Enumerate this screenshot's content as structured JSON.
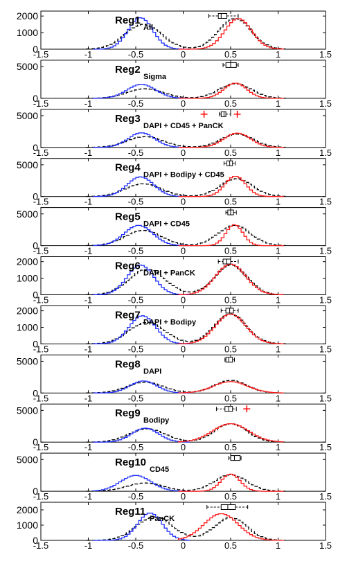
{
  "chart_data": [
    {
      "type": "line",
      "title": "Reg1",
      "subtitle": "All",
      "yticks": [
        0,
        1000,
        2000
      ],
      "ylim": [
        0,
        2300
      ],
      "blue": {
        "center": -0.45,
        "width": 0.13,
        "peak": 1900
      },
      "black": {
        "center_neg": -0.42,
        "peak_neg": 1500,
        "center_pos": 0.55,
        "peak_pos": 1850
      },
      "red": {
        "center": 0.58,
        "width": 0.14,
        "peak": 1850
      },
      "boxplot": {
        "q1": 0.37,
        "median": 0.4,
        "q3": 0.46,
        "whisker_low": 0.27,
        "whisker_high": 0.58,
        "outliers": []
      }
    },
    {
      "type": "line",
      "title": "Reg2",
      "subtitle": "Sigma",
      "yticks": [
        0,
        5000
      ],
      "ylim": [
        0,
        6000
      ],
      "blue": {
        "center": -0.44,
        "width": 0.15,
        "peak": 2200
      },
      "black": {
        "center_neg": -0.4,
        "peak_neg": 1500,
        "center_pos": 0.55,
        "peak_pos": 2300
      },
      "red": {
        "center": 0.55,
        "width": 0.12,
        "peak": 2400
      },
      "boxplot": {
        "q1": 0.45,
        "median": 0.5,
        "q3": 0.56,
        "whisker_low": 0.42,
        "whisker_high": 0.58,
        "outliers": []
      }
    },
    {
      "type": "line",
      "title": "Reg3",
      "subtitle": "DAPI + CD45 + PanCK",
      "yticks": [
        0,
        5000
      ],
      "ylim": [
        0,
        6000
      ],
      "blue": {
        "center": -0.44,
        "width": 0.14,
        "peak": 2300
      },
      "black": {
        "center_neg": -0.4,
        "peak_neg": 1700,
        "center_pos": 0.57,
        "peak_pos": 2100
      },
      "red": {
        "center": 0.57,
        "width": 0.14,
        "peak": 2250
      },
      "boxplot": {
        "q1": 0.4,
        "median": 0.43,
        "q3": 0.45,
        "whisker_low": 0.38,
        "whisker_high": 0.5,
        "outliers": [
          0.22,
          0.57
        ]
      }
    },
    {
      "type": "line",
      "title": "Reg4",
      "subtitle": "DAPI + Bodipy + CD45",
      "yticks": [
        0,
        5000
      ],
      "ylim": [
        0,
        6000
      ],
      "blue": {
        "center": -0.45,
        "width": 0.14,
        "peak": 3100
      },
      "black": {
        "center_neg": -0.42,
        "peak_neg": 2000,
        "center_pos": 0.56,
        "peak_pos": 2800
      },
      "red": {
        "center": 0.55,
        "width": 0.11,
        "peak": 3200
      },
      "boxplot": {
        "q1": 0.46,
        "median": 0.49,
        "q3": 0.52,
        "whisker_low": 0.43,
        "whisker_high": 0.55,
        "outliers": []
      }
    },
    {
      "type": "line",
      "title": "Reg5",
      "subtitle": "DAPI + CD45",
      "yticks": [
        0,
        5000
      ],
      "ylim": [
        0,
        6000
      ],
      "blue": {
        "center": -0.47,
        "width": 0.15,
        "peak": 3200
      },
      "black": {
        "center_neg": -0.42,
        "peak_neg": 2400,
        "center_pos": 0.54,
        "peak_pos": 3200
      },
      "red": {
        "center": 0.54,
        "width": 0.09,
        "peak": 3300
      },
      "boxplot": {
        "q1": 0.47,
        "median": 0.5,
        "q3": 0.53,
        "whisker_low": 0.45,
        "whisker_high": 0.56,
        "outliers": []
      }
    },
    {
      "type": "line",
      "title": "Reg6",
      "subtitle": "DAPI + PanCK",
      "yticks": [
        0,
        1000,
        2000
      ],
      "ylim": [
        0,
        2300
      ],
      "blue": {
        "center": -0.45,
        "width": 0.14,
        "peak": 1800
      },
      "black": {
        "center_neg": -0.38,
        "peak_neg": 1550,
        "center_pos": 0.5,
        "peak_pos": 1800
      },
      "red": {
        "center": 0.5,
        "width": 0.16,
        "peak": 1850
      },
      "boxplot": {
        "q1": 0.42,
        "median": 0.46,
        "q3": 0.5,
        "whisker_low": 0.37,
        "whisker_high": 0.58,
        "outliers": []
      }
    },
    {
      "type": "line",
      "title": "Reg7",
      "subtitle": "DAPI + Bodipy",
      "yticks": [
        0,
        1000,
        2000
      ],
      "ylim": [
        0,
        2300
      ],
      "blue": {
        "center": -0.43,
        "width": 0.14,
        "peak": 1700
      },
      "black": {
        "center_neg": -0.38,
        "peak_neg": 1300,
        "center_pos": 0.5,
        "peak_pos": 1800
      },
      "red": {
        "center": 0.5,
        "width": 0.16,
        "peak": 1800
      },
      "boxplot": {
        "q1": 0.45,
        "median": 0.49,
        "q3": 0.53,
        "whisker_low": 0.4,
        "whisker_high": 0.58,
        "outliers": []
      }
    },
    {
      "type": "line",
      "title": "Reg8",
      "subtitle": "DAPI",
      "yticks": [
        0,
        5000
      ],
      "ylim": [
        0,
        6000
      ],
      "blue": {
        "center": -0.42,
        "width": 0.14,
        "peak": 1900
      },
      "black": {
        "center_neg": -0.4,
        "peak_neg": 1700,
        "center_pos": 0.5,
        "peak_pos": 2000
      },
      "red": {
        "center": 0.5,
        "width": 0.18,
        "peak": 1800
      },
      "boxplot": {
        "q1": 0.45,
        "median": 0.48,
        "q3": 0.52,
        "whisker_low": 0.44,
        "whisker_high": 0.54,
        "outliers": []
      }
    },
    {
      "type": "line",
      "title": "Reg9",
      "subtitle": "Bodipy",
      "yticks": [
        0,
        5000
      ],
      "ylim": [
        0,
        6000
      ],
      "blue": {
        "center": -0.4,
        "width": 0.14,
        "peak": 2200
      },
      "black": {
        "center_neg": -0.38,
        "peak_neg": 2100,
        "center_pos": 0.5,
        "peak_pos": 2900
      },
      "red": {
        "center": 0.5,
        "width": 0.19,
        "peak": 2900
      },
      "boxplot": {
        "q1": 0.44,
        "median": 0.48,
        "q3": 0.52,
        "whisker_low": 0.35,
        "whisker_high": 0.56,
        "outliers": [
          0.67
        ]
      }
    },
    {
      "type": "line",
      "title": "Reg10",
      "subtitle": "CD45",
      "yticks": [
        0,
        5000
      ],
      "ylim": [
        0,
        6000
      ],
      "blue": {
        "center": -0.5,
        "width": 0.16,
        "peak": 2500
      },
      "black": {
        "center_neg": -0.4,
        "peak_neg": 1300,
        "center_pos": 0.5,
        "peak_pos": 2600
      },
      "red": {
        "center": 0.5,
        "width": 0.1,
        "peak": 2700
      },
      "boxplot": {
        "q1": 0.5,
        "median": 0.54,
        "q3": 0.6,
        "whisker_low": 0.48,
        "whisker_high": 0.61,
        "outliers": []
      }
    },
    {
      "type": "line",
      "title": "Reg11",
      "subtitle": "PanCK",
      "yticks": [
        0,
        1000,
        2000
      ],
      "ylim": [
        0,
        2500
      ],
      "blue": {
        "center": -0.35,
        "width": 0.13,
        "peak": 1800
      },
      "black": {
        "center_neg": -0.3,
        "peak_neg": 1550,
        "center_pos": 0.5,
        "peak_pos": 1500
      },
      "red": {
        "center": 0.4,
        "width": 0.18,
        "peak": 1750
      },
      "boxplot": {
        "q1": 0.4,
        "median": 0.47,
        "q3": 0.55,
        "whisker_low": 0.25,
        "whisker_high": 0.68,
        "outliers": []
      }
    }
  ],
  "xticks": [
    -1.5,
    -1,
    -0.5,
    0,
    0.5,
    1,
    1.5
  ],
  "xlim": [
    -1.5,
    1.5
  ],
  "colors": {
    "blue": "#1f2eff",
    "red": "#ff1a1a",
    "black": "#000000",
    "outlier": "#ff0000"
  }
}
